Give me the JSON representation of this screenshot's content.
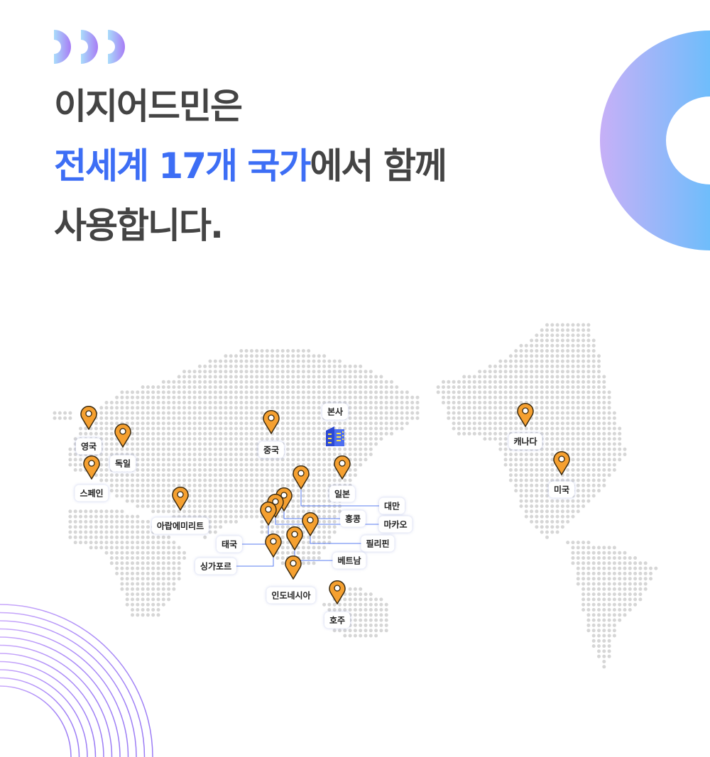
{
  "headline": {
    "line1": "이지어드민은",
    "line2_highlight": "전세계 17개 국가",
    "line2_rest": "에서 함께",
    "line3": "사용합니다."
  },
  "colors": {
    "highlight": "#3d6ef5",
    "pin": "#f5a030",
    "connector": "#5a7cf0",
    "dot": "#d6d6d6"
  },
  "headquarters": {
    "label": "본사",
    "icon": "building-icon"
  },
  "countries": [
    {
      "name": "영국"
    },
    {
      "name": "독일"
    },
    {
      "name": "스페인"
    },
    {
      "name": "아랍에미리트"
    },
    {
      "name": "중국"
    },
    {
      "name": "일본"
    },
    {
      "name": "대만"
    },
    {
      "name": "홍콩"
    },
    {
      "name": "마카오"
    },
    {
      "name": "태국"
    },
    {
      "name": "필리핀"
    },
    {
      "name": "싱가포르"
    },
    {
      "name": "베트남"
    },
    {
      "name": "인도네시아"
    },
    {
      "name": "호주"
    },
    {
      "name": "캐나다"
    },
    {
      "name": "미국"
    }
  ]
}
